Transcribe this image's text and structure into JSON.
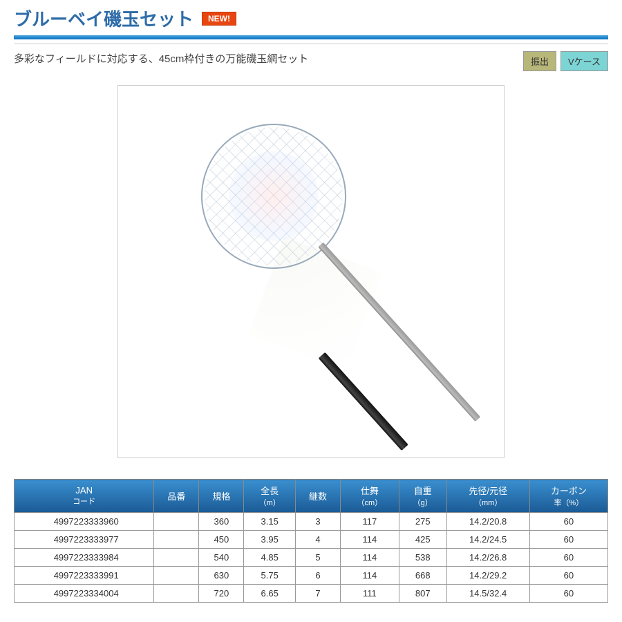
{
  "header": {
    "title": "ブルーベイ磯玉セット",
    "new_badge": "NEW!"
  },
  "description": "多彩なフィールドに対応する、45cm枠付きの万能磯玉網セット",
  "tags": {
    "tag1": "振出",
    "tag2": "Vケース"
  },
  "colors": {
    "title_color": "#2d6ca8",
    "new_badge_bg": "#e84610",
    "table_header_bg_top": "#3a8fcf",
    "table_header_bg_bottom": "#1a5a95",
    "tag_olive": "#b8b77a",
    "tag_teal": "#7dd4d4"
  },
  "table": {
    "columns": [
      {
        "main": "JAN",
        "sub": "コード"
      },
      {
        "main": "品番",
        "sub": ""
      },
      {
        "main": "規格",
        "sub": ""
      },
      {
        "main": "全長",
        "sub": "（m）"
      },
      {
        "main": "継数",
        "sub": ""
      },
      {
        "main": "仕舞",
        "sub": "（cm）"
      },
      {
        "main": "自重",
        "sub": "（g）"
      },
      {
        "main": "先径/元径",
        "sub": "（mm）"
      },
      {
        "main": "カーボン",
        "sub": "率（%）"
      }
    ],
    "rows": [
      {
        "jan": "4997223333960",
        "item": "",
        "spec": "360",
        "length": "3.15",
        "sections": "3",
        "closed": "117",
        "weight": "275",
        "diameter": "14.2/20.8",
        "carbon": "60"
      },
      {
        "jan": "4997223333977",
        "item": "",
        "spec": "450",
        "length": "3.95",
        "sections": "4",
        "closed": "114",
        "weight": "425",
        "diameter": "14.2/24.5",
        "carbon": "60"
      },
      {
        "jan": "4997223333984",
        "item": "",
        "spec": "540",
        "length": "4.85",
        "sections": "5",
        "closed": "114",
        "weight": "538",
        "diameter": "14.2/26.8",
        "carbon": "60"
      },
      {
        "jan": "4997223333991",
        "item": "",
        "spec": "630",
        "length": "5.75",
        "sections": "6",
        "closed": "114",
        "weight": "668",
        "diameter": "14.2/29.2",
        "carbon": "60"
      },
      {
        "jan": "4997223334004",
        "item": "",
        "spec": "720",
        "length": "6.65",
        "sections": "7",
        "closed": "111",
        "weight": "807",
        "diameter": "14.5/32.4",
        "carbon": "60"
      }
    ]
  }
}
